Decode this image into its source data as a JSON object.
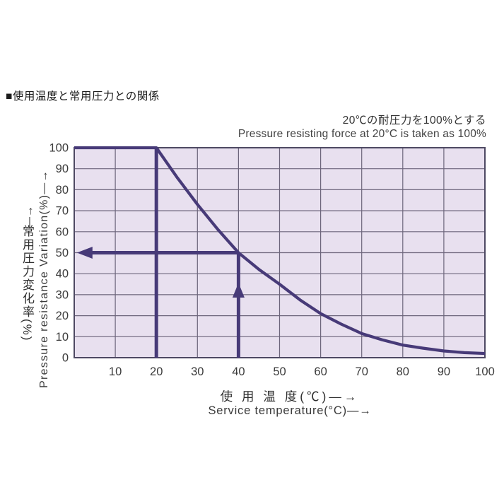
{
  "page": {
    "background": "#ffffff"
  },
  "header": {
    "title": "■使用温度と常用圧力との関係"
  },
  "annotation": {
    "line1_ja": "20℃の耐圧力を100%とする",
    "line2_en": "Pressure resisting force at 20°C is taken as 100%"
  },
  "y_axis": {
    "label_ja": "常用圧力変化率(%)",
    "up_arrow": "—→",
    "label_en": "Pressure resistance Variation(%)—→"
  },
  "x_axis": {
    "label_ja": "使 用 温 度(℃)—→",
    "label_en": "Service temperature(°C)—→"
  },
  "chart_data": {
    "type": "line",
    "title": "使用温度と常用圧力との関係",
    "subtitle_ja": "20℃の耐圧力を100%とする",
    "subtitle_en": "Pressure resisting force at 20°C is taken as 100%",
    "xlabel": "Service temperature(°C)",
    "ylabel": "Pressure resistance Variation(%)",
    "xlim": [
      0,
      100
    ],
    "ylim": [
      0,
      100
    ],
    "x_ticks": [
      10,
      20,
      30,
      40,
      50,
      60,
      70,
      80,
      90,
      100
    ],
    "y_ticks": [
      0,
      10,
      20,
      30,
      40,
      50,
      60,
      70,
      80,
      90,
      100
    ],
    "grid": true,
    "legend": "none",
    "series": [
      {
        "name": "pressure-resistance-vs-temperature",
        "x": [
          0,
          10,
          20,
          25,
          30,
          35,
          40,
          45,
          50,
          55,
          60,
          65,
          70,
          75,
          80,
          85,
          90,
          95,
          100
        ],
        "y": [
          100,
          100,
          100,
          86,
          73,
          61,
          50,
          42,
          35,
          27.5,
          21,
          16,
          11.5,
          8.5,
          6,
          4.5,
          3.2,
          2.4,
          2
        ]
      }
    ],
    "reference_lines": {
      "vline": {
        "x": 20,
        "y1": 0,
        "y2": 100
      },
      "left_arrow": {
        "y": 50,
        "x1": 40,
        "x2": 1
      },
      "up_arrow": {
        "x": 40,
        "y1": 0,
        "y2": 50,
        "head_tip_y": 35
      }
    },
    "colors": {
      "plot_bg": "#e8e0ef",
      "grid": "#6c657b",
      "border": "#4e4963",
      "line": "#473a78",
      "tick_text": "#3a3a3a"
    }
  }
}
